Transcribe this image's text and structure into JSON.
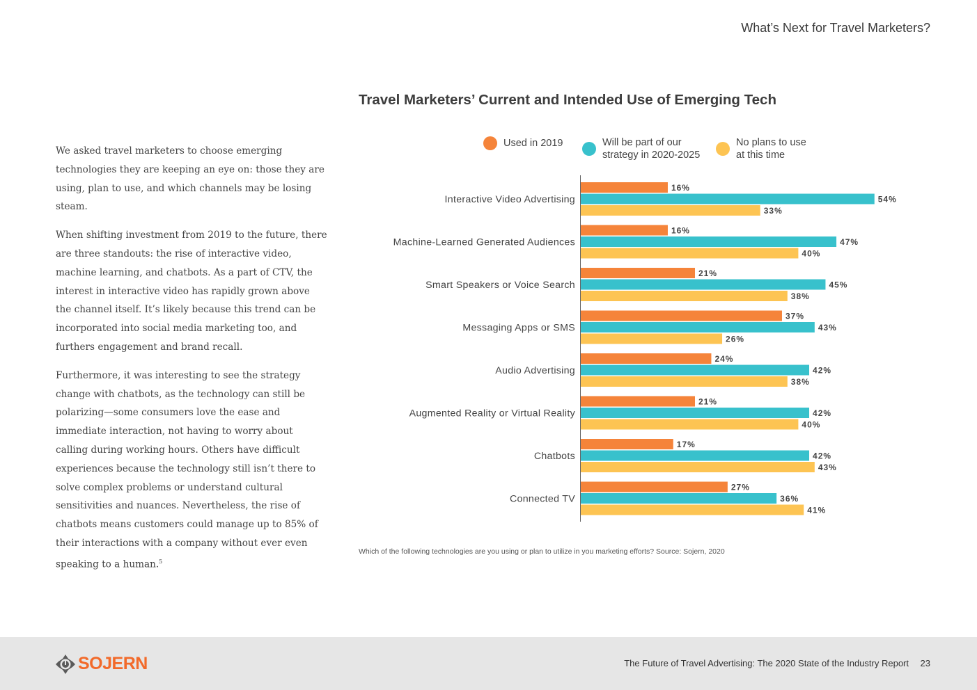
{
  "header": {
    "title": "What’s Next for Travel Marketers?"
  },
  "body": {
    "paragraphs": [
      "We asked travel marketers to choose emerging technologies they are keeping an eye on: those they are using, plan to use, and which channels may be losing steam.",
      "When shifting investment from 2019 to the future, there are three standouts: the rise of interactive video, machine learning, and chatbots. As a part of CTV, the interest in interactive video has rapidly grown above the channel itself. It’s likely because this trend can be incorporated into social media marketing too, and furthers engagement and brand recall.",
      "Furthermore, it was interesting to see the strategy change with chatbots, as the technology can still be polarizing—some consumers love the ease and immediate interaction, not having to worry about calling during working hours. Others have difficult experiences because the technology still isn’t there to solve complex problems or understand cultural sensitivities and nuances. Nevertheless, the rise of chatbots means customers could manage up to 85% of their interactions with a company without ever even speaking to a human."
    ],
    "footnote": "5"
  },
  "chart_data": {
    "type": "bar",
    "orientation": "horizontal",
    "title": "Travel Marketers’ Current and Intended Use of Emerging Tech",
    "categories": [
      "Interactive Video Advertising",
      "Machine-Learned Generated Audiences",
      "Smart Speakers or Voice Search",
      "Messaging Apps or SMS",
      "Audio Advertising",
      "Augmented Reality or Virtual Reality",
      "Chatbots",
      "Connected TV"
    ],
    "series": [
      {
        "name": "Used in 2019",
        "color": "#F5843A",
        "values": [
          16,
          16,
          21,
          37,
          24,
          21,
          17,
          27
        ]
      },
      {
        "name": "Will be part of our strategy in 2020-2025",
        "color": "#38C1CC",
        "values": [
          54,
          47,
          45,
          43,
          42,
          42,
          42,
          36
        ]
      },
      {
        "name": "No plans to use at this time",
        "color": "#FDC453",
        "values": [
          33,
          40,
          38,
          26,
          38,
          40,
          43,
          41
        ]
      }
    ],
    "legend_lines": [
      [
        "Used in 2019"
      ],
      [
        "Will be part of our",
        "strategy in 2020-2025"
      ],
      [
        "No plans to use",
        "at this time"
      ]
    ],
    "value_suffix": "%",
    "xlim": [
      0,
      60
    ],
    "legend_position": "top",
    "source": "Which of the following technologies are you using or plan to utilize in you marketing efforts? Source: Sojern, 2020"
  },
  "footer": {
    "logo": "SOJERN",
    "report_title": "The Future of Travel Advertising: The 2020 State of the Industry Report",
    "page_number": "23"
  }
}
